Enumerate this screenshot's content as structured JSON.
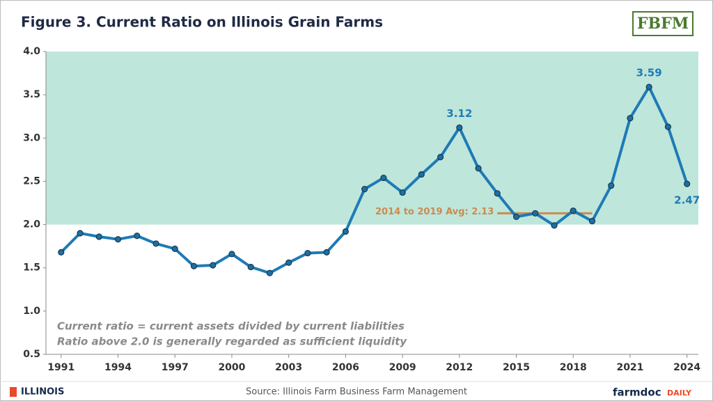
{
  "chart_data": {
    "type": "line",
    "title": "Figure 3. Current Ratio on Illinois Grain Farms",
    "x": [
      1991,
      1992,
      1993,
      1994,
      1995,
      1996,
      1997,
      1998,
      1999,
      2000,
      2001,
      2002,
      2003,
      2004,
      2005,
      2006,
      2007,
      2008,
      2009,
      2010,
      2011,
      2012,
      2013,
      2014,
      2015,
      2016,
      2017,
      2018,
      2019,
      2020,
      2021,
      2022,
      2023,
      2024
    ],
    "series": [
      {
        "name": "Current ratio",
        "color": "#1f7ab5",
        "values": [
          1.68,
          1.9,
          1.86,
          1.83,
          1.87,
          1.78,
          1.72,
          1.52,
          1.53,
          1.66,
          1.51,
          1.44,
          1.56,
          1.67,
          1.68,
          1.92,
          2.41,
          2.54,
          2.37,
          2.58,
          2.78,
          3.12,
          2.65,
          2.36,
          2.09,
          2.13,
          1.99,
          2.16,
          2.04,
          2.45,
          3.23,
          3.59,
          3.13,
          2.47
        ]
      }
    ],
    "labeled_points": [
      21,
      31,
      33
    ],
    "xlim": [
      1990.2,
      2024.6
    ],
    "xticks": [
      1991,
      1994,
      1997,
      2000,
      2003,
      2006,
      2009,
      2012,
      2015,
      2018,
      2021,
      2024
    ],
    "ylim": [
      0.5,
      4.0
    ],
    "yticks": [
      {
        "value": 0.5,
        "label": "0.5"
      },
      {
        "value": 1,
        "label": "1.0"
      },
      {
        "value": 1.5,
        "label": "1.5"
      },
      {
        "value": 2,
        "label": "2.0"
      },
      {
        "value": 2.5,
        "label": "2.5"
      },
      {
        "value": 3,
        "label": "3.0"
      },
      {
        "value": 3.5,
        "label": "3.5"
      },
      {
        "value": 4,
        "label": "4.0"
      }
    ],
    "shaded_range": [
      2,
      4
    ],
    "shade_color": "#bee6db",
    "average": {
      "label": "2014 to 2019 Avg: 2.13",
      "value": 2.13,
      "x": [
        2014,
        2019
      ],
      "color": "#cc8a4e"
    },
    "notes": [
      "Current ratio = current assets divided by current liabilities",
      "Ratio above 2.0 is generally regarded as sufficient liquidity"
    ],
    "source": "Source:  Illinois Farm Business Farm Management",
    "logo_top": "FBFM",
    "logo_left": "ILLINOIS",
    "logo_right": [
      "farmdoc",
      "DAILY"
    ]
  }
}
